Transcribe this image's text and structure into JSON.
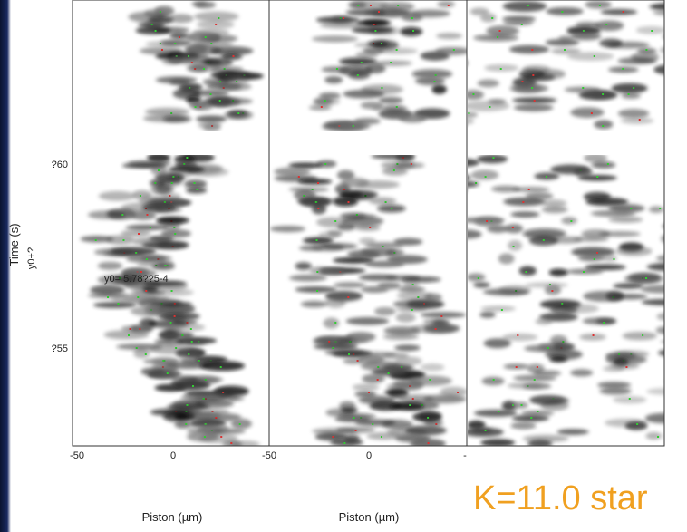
{
  "figure": {
    "y_axis_label": "Time (s)",
    "y_axis_sublabel": "y0+?",
    "y_tick_labels": [
      "?60",
      "?55"
    ],
    "annotation": "y0= 5.78??5-4",
    "panels": [
      {
        "x_tick_labels": [
          "-50",
          "0"
        ],
        "x_axis_label": "Piston (µm)"
      },
      {
        "x_tick_labels": [
          "-50",
          "0"
        ],
        "x_axis_label": "Piston (µm)"
      },
      {
        "x_tick_labels": [
          "-"
        ]
      }
    ],
    "caption": "K=11.0 star"
  }
}
